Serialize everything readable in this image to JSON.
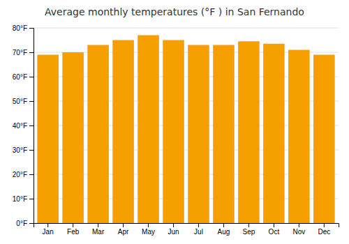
{
  "chart_data": {
    "type": "bar",
    "title": "Average monthly temperatures (°F ) in San Fernando",
    "categories": [
      "Jan",
      "Feb",
      "Mar",
      "Apr",
      "May",
      "Jun",
      "Jul",
      "Aug",
      "Sep",
      "Oct",
      "Nov",
      "Dec"
    ],
    "values": [
      69,
      70,
      73,
      75,
      77,
      75,
      73,
      73,
      74.5,
      73.5,
      71,
      69
    ],
    "color": "#F5A000",
    "ylim": [
      0,
      80
    ],
    "yticks": [
      {
        "value": 0,
        "label": "0°F"
      },
      {
        "value": 10,
        "label": "10°F"
      },
      {
        "value": 20,
        "label": "20°F"
      },
      {
        "value": 30,
        "label": "30°F"
      },
      {
        "value": 40,
        "label": "40°F"
      },
      {
        "value": 50,
        "label": "50°F"
      },
      {
        "value": 60,
        "label": "60°F"
      },
      {
        "value": 70,
        "label": "70°F"
      },
      {
        "value": 80,
        "label": "80°F"
      }
    ],
    "grid": true
  }
}
